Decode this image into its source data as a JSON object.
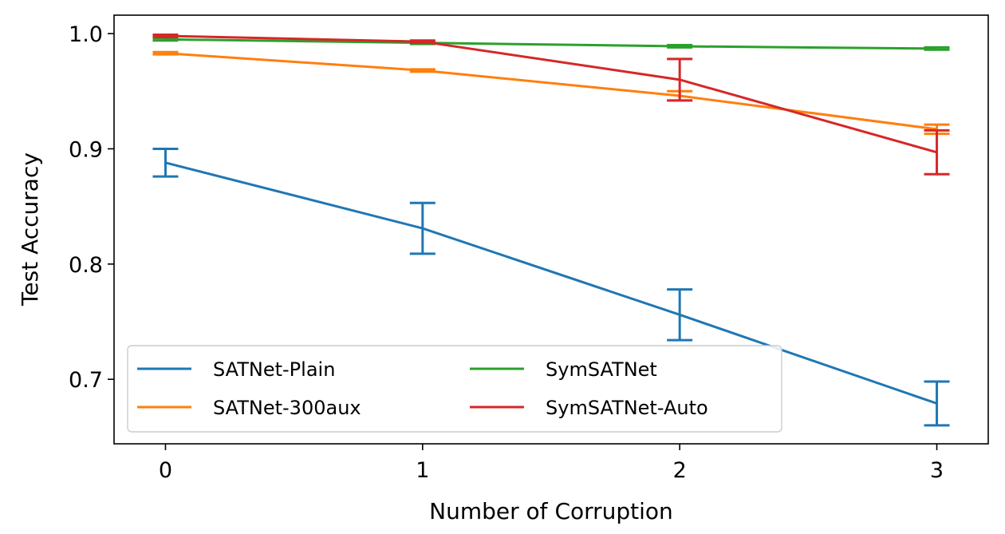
{
  "chart_data": {
    "type": "line",
    "title": "",
    "xlabel": "Number of Corruption",
    "ylabel": "Test Accuracy",
    "x": [
      0,
      1,
      2,
      3
    ],
    "x_ticks": [
      "0",
      "1",
      "2",
      "3"
    ],
    "y_ticks": [
      "0.7",
      "0.8",
      "0.9",
      "1.0"
    ],
    "xlim": [
      -0.2,
      3.2
    ],
    "ylim": [
      0.644,
      1.016
    ],
    "grid": false,
    "legend_position": "lower-left",
    "legend_columns": 2,
    "series": [
      {
        "name": "SATNet-Plain",
        "color": "#1f77b4",
        "values": [
          0.888,
          0.831,
          0.756,
          0.679
        ],
        "errors": [
          0.012,
          0.022,
          0.022,
          0.019
        ]
      },
      {
        "name": "SATNet-300aux",
        "color": "#ff7f0e",
        "values": [
          0.983,
          0.968,
          0.946,
          0.917
        ],
        "errors": [
          0.001,
          0.001,
          0.004,
          0.004
        ]
      },
      {
        "name": "SymSATNet",
        "color": "#2ca02c",
        "values": [
          0.995,
          0.992,
          0.989,
          0.987
        ],
        "errors": [
          0.001,
          0.001,
          0.001,
          0.001
        ]
      },
      {
        "name": "SymSATNet-Auto",
        "color": "#d62728",
        "values": [
          0.998,
          0.993,
          0.96,
          0.897
        ],
        "errors": [
          0.001,
          0.001,
          0.018,
          0.019
        ]
      }
    ]
  }
}
